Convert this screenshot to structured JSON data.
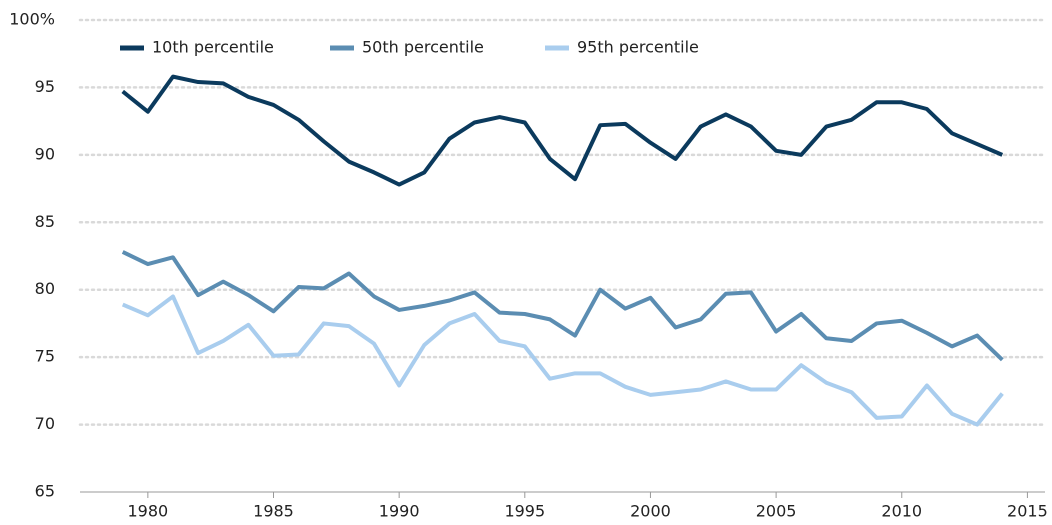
{
  "chart_data": {
    "type": "line",
    "x": [
      1979,
      1980,
      1981,
      1982,
      1983,
      1984,
      1985,
      1986,
      1987,
      1988,
      1989,
      1990,
      1991,
      1992,
      1993,
      1994,
      1995,
      1996,
      1997,
      1998,
      1999,
      2000,
      2001,
      2002,
      2003,
      2004,
      2005,
      2006,
      2007,
      2008,
      2009,
      2010,
      2011,
      2012,
      2013,
      2014
    ],
    "series": [
      {
        "name": "10th percentile",
        "color": "#0b3a5d",
        "values": [
          94.7,
          93.2,
          95.8,
          95.4,
          95.3,
          94.3,
          93.7,
          92.6,
          91.0,
          89.5,
          88.7,
          87.8,
          88.7,
          91.2,
          92.4,
          92.8,
          92.4,
          89.7,
          88.2,
          92.2,
          92.3,
          90.9,
          89.7,
          92.1,
          93.0,
          92.1,
          90.3,
          90.0,
          92.1,
          92.6,
          93.9,
          93.9,
          93.4,
          91.6,
          90.8,
          90.0
        ]
      },
      {
        "name": "50th percentile",
        "color": "#5b8db2",
        "values": [
          82.8,
          81.9,
          82.4,
          79.6,
          80.6,
          79.6,
          78.4,
          80.2,
          80.1,
          81.2,
          79.5,
          78.5,
          78.8,
          79.2,
          79.8,
          78.3,
          78.2,
          77.8,
          76.6,
          80.0,
          78.6,
          79.4,
          77.2,
          77.8,
          79.7,
          79.8,
          76.9,
          78.2,
          76.4,
          76.2,
          77.5,
          77.7,
          76.8,
          75.8,
          76.6,
          74.8
        ]
      },
      {
        "name": "95th percentile",
        "color": "#a9cdee",
        "values": [
          78.9,
          78.1,
          79.5,
          75.3,
          76.2,
          77.4,
          75.1,
          75.2,
          77.5,
          77.3,
          76.0,
          72.9,
          75.9,
          77.5,
          78.2,
          76.2,
          75.8,
          73.4,
          73.8,
          73.8,
          72.8,
          72.2,
          72.4,
          72.6,
          73.2,
          72.6,
          72.6,
          74.4,
          73.1,
          72.4,
          70.5,
          70.6,
          72.9,
          70.8,
          70.0,
          72.3
        ]
      }
    ],
    "xlim": [
      1977.3,
      2015.7
    ],
    "xticks": [
      1980,
      1985,
      1990,
      1995,
      2000,
      2005,
      2010,
      2015
    ],
    "ylim": [
      65,
      100
    ],
    "yticks": [
      65,
      70,
      75,
      80,
      85,
      90,
      95,
      {
        "value": 100,
        "label": "100%"
      }
    ],
    "grid": true,
    "legend": "top-left"
  }
}
